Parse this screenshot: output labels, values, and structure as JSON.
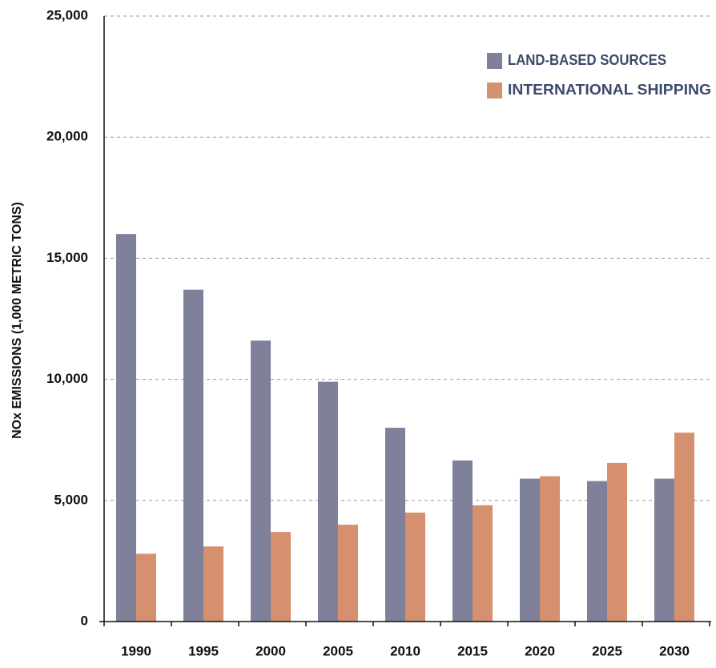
{
  "chart_data": {
    "type": "bar",
    "y_label": "NOx EMISSIONS (1,000 METRIC TONS)",
    "categories": [
      "1990",
      "1995",
      "2000",
      "2005",
      "2010",
      "2015",
      "2020",
      "2025",
      "2030"
    ],
    "series": [
      {
        "name": "LAND-BASED SOURCES",
        "color": "#7f8099",
        "values": [
          16000,
          13700,
          11600,
          9900,
          8000,
          6650,
          5900,
          5800,
          5900
        ]
      },
      {
        "name": "INTERNATIONAL SHIPPING",
        "color": "#d4906f",
        "values": [
          2800,
          3100,
          3700,
          4000,
          4500,
          4800,
          6000,
          6550,
          7800
        ]
      }
    ],
    "ylim": [
      0,
      25000
    ],
    "yticks": [
      0,
      {
        "value": 5000,
        "label": "5,000"
      },
      {
        "value": 10000,
        "label": "10,000"
      },
      {
        "value": 15000,
        "label": "15,000"
      },
      {
        "value": 20000,
        "label": "20,000"
      },
      {
        "value": 25000,
        "label": "25,000"
      }
    ],
    "grid": true,
    "legend": "top-right"
  }
}
